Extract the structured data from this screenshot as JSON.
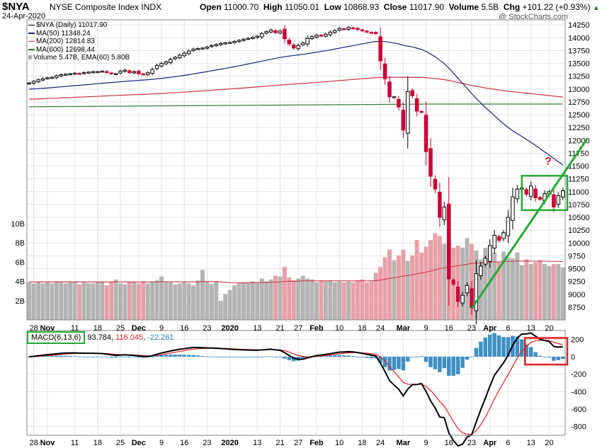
{
  "header": {
    "symbol": "$NYA",
    "name": "NYSE Composite Index",
    "exchange": "INDX",
    "date": "24-Apr-2020",
    "open_label": "Open",
    "open": "11000.70",
    "high_label": "High",
    "high": "11050.01",
    "low_label": "Low",
    "low": "10868.93",
    "close_label": "Close",
    "close": "11017.90",
    "volume_label": "Volume",
    "volume": "5.5B",
    "chg_label": "Chg",
    "chg": "+101.22 (+0.93%)",
    "arrow": "▲",
    "watermark": "@ StockCharts.com"
  },
  "legend": {
    "main": "$NYA (Daily) 11017.90",
    "ma50": "MA(50) 11348.24",
    "ma200": "MA(200) 12814.83",
    "ma600": "MA(600) 12698.44",
    "volume": "Volume 5.47B, EMA(60) 5.80B"
  },
  "macd_legend": {
    "label": "MACD(6,13,6)",
    "macd": "93.784,",
    "signal": "116.045,",
    "hist": "-22.261"
  },
  "annotation": {
    "question": "?"
  },
  "colors": {
    "up": "#000000",
    "down": "#cc0033",
    "ma50": "#1a237e",
    "ma200": "#cc3344",
    "ma600": "#2e7d32",
    "vol_up": "#b4b4b4",
    "vol_down": "#e8a0a8",
    "macd_hist": "#3d8fc4",
    "signal": "#e02020",
    "annot_green": "#22aa33",
    "annot_red": "#dd2222"
  },
  "chart_data": [
    {
      "type": "candlestick",
      "title": "$NYA NYSE Composite Index (Daily)",
      "ylim": [
        8500,
        14350
      ],
      "y_ticks": [
        8750,
        9000,
        9250,
        9500,
        9750,
        10000,
        10250,
        10500,
        10750,
        11000,
        11250,
        11500,
        11750,
        12000,
        12250,
        12500,
        12750,
        13000,
        13250,
        13500,
        13750,
        14000,
        14250
      ],
      "x_tick_labels": [
        "28",
        "Nov",
        "11",
        "18",
        "25",
        "Dec",
        "9",
        "16",
        "23",
        "2020",
        "13",
        "21",
        "27",
        "Feb",
        "10",
        "18",
        "24",
        "Mar",
        "9",
        "16",
        "23",
        "Apr",
        "6",
        "13",
        "20"
      ],
      "x_tick_index": [
        1,
        4,
        10,
        15,
        20,
        24,
        29,
        34,
        39,
        44,
        50,
        55,
        59,
        63,
        68,
        73,
        77,
        82,
        87,
        92,
        97,
        101,
        105,
        110,
        114
      ],
      "close": [
        13120,
        13150,
        13180,
        13200,
        13220,
        13230,
        13260,
        13280,
        13290,
        13300,
        13310,
        13300,
        13320,
        13330,
        13340,
        13340,
        13350,
        13320,
        13300,
        13300,
        13350,
        13370,
        13320,
        13340,
        13300,
        13290,
        13320,
        13380,
        13460,
        13500,
        13530,
        13580,
        13620,
        13660,
        13700,
        13740,
        13780,
        13790,
        13800,
        13820,
        13850,
        13870,
        13890,
        13900,
        13910,
        13930,
        13950,
        13970,
        13990,
        14010,
        14030,
        14080,
        14120,
        14150,
        14100,
        14130,
        13980,
        13880,
        13800,
        13850,
        13900,
        13990,
        14020,
        14050,
        14040,
        14070,
        14110,
        14140,
        14180,
        14170,
        14200,
        14180,
        14160,
        14140,
        14110,
        14100,
        14080,
        13550,
        13200,
        12850,
        12850,
        12650,
        12200,
        12950,
        12870,
        12570,
        12550,
        11780,
        11300,
        11050,
        10500,
        10700,
        9300,
        9200,
        8860,
        8980,
        9170,
        8740,
        9400,
        9550,
        9700,
        9950,
        10150,
        10050,
        10200,
        10500,
        10900,
        11050,
        11070,
        10950,
        11110,
        10880,
        10850,
        10960,
        11000,
        10700,
        10920,
        11018
      ],
      "volume_B": [
        3.9,
        3.8,
        3.9,
        3.8,
        3.9,
        3.8,
        4.0,
        3.9,
        3.8,
        3.9,
        4.0,
        3.7,
        3.9,
        3.8,
        3.8,
        3.9,
        4.0,
        3.6,
        4.0,
        4.2,
        3.8,
        3.7,
        3.9,
        3.9,
        3.8,
        4.0,
        3.8,
        3.9,
        4.1,
        4.5,
        4.0,
        3.9,
        3.7,
        3.8,
        3.9,
        3.8,
        3.6,
        4.1,
        5.2,
        4.0,
        3.7,
        4.0,
        2.0,
        2.7,
        3.1,
        3.6,
        3.8,
        3.9,
        3.9,
        4.0,
        3.9,
        4.3,
        4.0,
        4.2,
        4.6,
        4.5,
        5.5,
        4.4,
        4.1,
        4.3,
        4.6,
        4.3,
        4.2,
        3.9,
        4.1,
        4.0,
        4.1,
        3.9,
        4.0,
        3.9,
        4.0,
        3.9,
        4.1,
        4.2,
        3.9,
        4.0,
        4.9,
        5.5,
        6.5,
        7.3,
        6.2,
        6.7,
        7.3,
        6.1,
        6.7,
        8.3,
        7.0,
        7.6,
        8.3,
        9.0,
        8.7,
        7.9,
        8.1,
        7.5,
        7.7,
        7.5,
        8.5,
        7.9,
        7.2,
        6.3,
        7.5,
        6.4,
        7.0,
        6.0,
        7.1,
        6.5,
        6.4,
        7.0,
        5.7,
        6.3,
        5.8,
        6.0,
        6.2,
        5.8,
        5.6,
        5.8,
        5.8,
        5.47
      ],
      "volume_ticks": [
        "2B",
        "4B",
        "6B",
        "8B",
        "10B"
      ],
      "ma_series": [
        {
          "name": "MA(50)",
          "last": 11348.24
        },
        {
          "name": "MA(200)",
          "last": 12814.83
        },
        {
          "name": "MA(600)",
          "last": 12698.44
        }
      ]
    },
    {
      "type": "macd",
      "title": "MACD(6,13,6)",
      "ylim": [
        -900,
        300
      ],
      "y_ticks": [
        200,
        0,
        -200,
        -400,
        -600,
        -800
      ],
      "macd_last": 93.784,
      "signal_last": 116.045,
      "hist_last": -22.261
    }
  ]
}
